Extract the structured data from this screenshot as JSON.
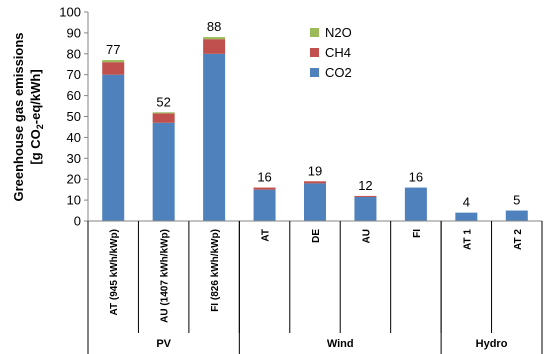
{
  "chart_data": {
    "type": "bar",
    "stacked": true,
    "ylim": [
      0,
      100
    ],
    "yticks": [
      0,
      10,
      20,
      30,
      40,
      50,
      60,
      70,
      80,
      90,
      100
    ],
    "ylabel_line1": "Greenhouse gas emissions",
    "ylabel_line2_prefix": "[g CO",
    "ylabel_line2_sub": "2",
    "ylabel_line2_suffix": "-eq/kWh]",
    "grid": false,
    "legend_position": "top-center",
    "categories": [
      "AT (945 kWh/kWp)",
      "AU (1407 kWh/kWp)",
      "FI (826 kWh/kWp)",
      "AT",
      "DE",
      "AU",
      "FI",
      "AT 1",
      "AT 2"
    ],
    "groups": [
      {
        "label": "PV",
        "count": 3
      },
      {
        "label": "Wind",
        "count": 4
      },
      {
        "label": "Hydro",
        "count": 2
      }
    ],
    "totals": [
      "77",
      "52",
      "88",
      "16",
      "19",
      "12",
      "16",
      "4",
      "5"
    ],
    "series": [
      {
        "name": "CO2",
        "color": "#4f81bd",
        "values": [
          70,
          47,
          80,
          15,
          18,
          11.5,
          16,
          4,
          5
        ]
      },
      {
        "name": "CH4",
        "color": "#c0504d",
        "values": [
          6,
          4.5,
          7,
          1,
          1,
          0.5,
          0,
          0,
          0
        ]
      },
      {
        "name": "N2O",
        "color": "#9bbb59",
        "values": [
          1,
          0.5,
          1,
          0,
          0,
          0,
          0,
          0,
          0
        ]
      }
    ]
  }
}
